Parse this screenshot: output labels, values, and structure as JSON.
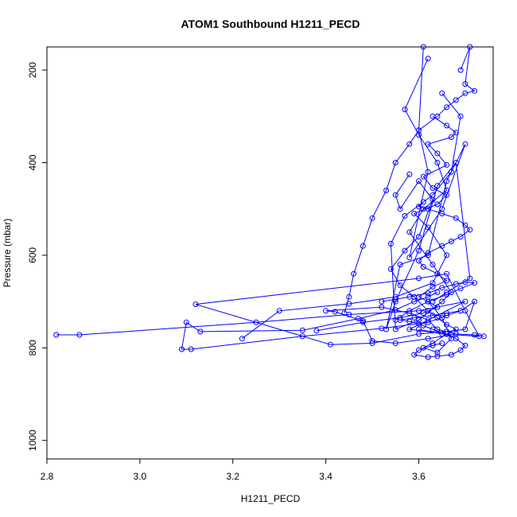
{
  "chart_data": {
    "type": "scatter",
    "title": "ATOM1 Southbound H1211_PECD",
    "xlabel": "H1211_PECD",
    "ylabel": "Pressure (mbar)",
    "xlim": [
      2.8,
      3.76
    ],
    "ylim": [
      1040,
      150
    ],
    "y_reversed": true,
    "xticks": [
      "2.8",
      "3.0",
      "3.2",
      "3.4",
      "3.6"
    ],
    "yticks": [
      "200",
      "400",
      "600",
      "800",
      "1000"
    ],
    "grid": false,
    "legend": "none",
    "colors": {
      "series": "#0000ff",
      "axis": "#000000",
      "background": "#ffffff"
    },
    "series": [
      {
        "marker": "open-circle",
        "connected": true,
        "x": [
          3.64,
          3.62,
          3.59,
          3.55,
          3.47,
          3.35,
          3.13,
          3.1,
          3.09,
          3.11,
          3.35,
          3.52,
          3.62,
          3.66,
          3.69,
          3.72,
          3.7,
          3.66,
          3.6,
          3.5,
          3.41,
          3.12,
          3.6,
          3.66,
          3.7,
          3.73,
          3.65,
          3.6
        ],
        "y": [
          680,
          690,
          700,
          718,
          737,
          762,
          765,
          745,
          803,
          803,
          775,
          758,
          745,
          730,
          720,
          700,
          760,
          765,
          770,
          790,
          793,
          706,
          650,
          640,
          720,
          775,
          770,
          760
        ]
      },
      {
        "marker": "open-circle",
        "connected": true,
        "x": [
          2.82,
          2.87,
          3.25,
          3.45,
          3.6,
          3.7,
          3.58,
          3.67,
          3.62,
          3.55,
          3.5,
          3.48,
          3.42,
          3.4,
          3.52,
          3.58,
          3.62,
          3.64,
          3.68,
          3.72,
          3.74
        ],
        "y": [
          772,
          772,
          745,
          728,
          720,
          700,
          760,
          772,
          780,
          790,
          785,
          742,
          722,
          720,
          712,
          725,
          740,
          760,
          770,
          772,
          775
        ]
      },
      {
        "marker": "open-circle",
        "connected": true,
        "x": [
          3.61,
          3.6,
          3.62,
          3.58,
          3.65,
          3.7,
          3.66,
          3.62,
          3.56,
          3.53,
          3.55,
          3.6,
          3.64,
          3.68,
          3.71,
          3.66,
          3.63
        ],
        "y": [
          150,
          330,
          420,
          605,
          500,
          360,
          440,
          600,
          620,
          760,
          700,
          590,
          450,
          400,
          650,
          680,
          700
        ]
      },
      {
        "marker": "open-circle",
        "connected": true,
        "x": [
          3.62,
          3.57,
          3.6,
          3.64,
          3.66,
          3.61,
          3.58,
          3.63,
          3.67,
          3.65,
          3.6,
          3.55,
          3.54,
          3.57,
          3.63,
          3.67,
          3.69,
          3.65
        ],
        "y": [
          175,
          285,
          340,
          400,
          460,
          500,
          550,
          620,
          680,
          700,
          740,
          760,
          575,
          515,
          470,
          420,
          300,
          250
        ]
      },
      {
        "marker": "open-circle",
        "connected": true,
        "x": [
          3.58,
          3.55,
          3.56,
          3.6,
          3.63,
          3.6,
          3.57,
          3.54,
          3.56,
          3.59,
          3.62,
          3.64,
          3.66,
          3.68,
          3.66,
          3.63,
          3.61,
          3.64,
          3.67,
          3.65,
          3.62
        ],
        "y": [
          425,
          470,
          500,
          440,
          480,
          560,
          590,
          630,
          665,
          690,
          720,
          735,
          750,
          760,
          770,
          790,
          800,
          810,
          780,
          735,
          700
        ]
      },
      {
        "marker": "open-circle",
        "connected": true,
        "x": [
          3.22,
          3.3,
          3.45,
          3.55,
          3.63,
          3.66,
          3.62,
          3.59,
          3.64,
          3.66,
          3.63,
          3.61,
          3.66,
          3.64,
          3.62,
          3.67,
          3.68,
          3.66,
          3.63
        ],
        "y": [
          780,
          720,
          705,
          690,
          660,
          600,
          540,
          510,
          490,
          470,
          455,
          430,
          405,
          380,
          360,
          345,
          335,
          320,
          300
        ]
      },
      {
        "marker": "open-circle",
        "connected": true,
        "x": [
          3.38,
          3.48,
          3.56,
          3.61,
          3.64,
          3.62,
          3.6,
          3.63,
          3.66,
          3.64,
          3.61,
          3.6,
          3.62,
          3.65,
          3.67,
          3.69,
          3.71,
          3.7,
          3.68,
          3.65,
          3.62,
          3.6,
          3.61
        ],
        "y": [
          763,
          745,
          735,
          725,
          712,
          700,
          690,
          668,
          655,
          640,
          625,
          612,
          595,
          580,
          570,
          560,
          545,
          535,
          520,
          510,
          500,
          495,
          485
        ]
      },
      {
        "marker": "open-circle",
        "connected": true,
        "x": [
          3.65,
          3.63,
          3.6,
          3.59,
          3.62,
          3.64,
          3.67,
          3.69,
          3.7,
          3.68,
          3.66,
          3.63,
          3.61,
          3.6,
          3.58,
          3.56,
          3.59,
          3.63,
          3.66,
          3.69
        ],
        "y": [
          790,
          795,
          805,
          815,
          820,
          818,
          815,
          805,
          795,
          780,
          770,
          760,
          752,
          748,
          743,
          740,
          735,
          730,
          725,
          720
        ]
      },
      {
        "marker": "open-circle",
        "connected": true,
        "x": [
          3.69,
          3.71,
          3.7,
          3.72,
          3.7,
          3.68,
          3.66,
          3.64,
          3.6,
          3.58,
          3.55,
          3.53,
          3.5,
          3.48,
          3.46,
          3.45,
          3.44
        ],
        "y": [
          200,
          150,
          230,
          245,
          250,
          265,
          280,
          300,
          330,
          360,
          400,
          460,
          520,
          580,
          640,
          690,
          725
        ]
      },
      {
        "marker": "open-circle",
        "connected": true,
        "x": [
          3.52,
          3.55,
          3.58,
          3.62,
          3.65,
          3.68,
          3.7,
          3.72,
          3.69,
          3.66,
          3.62,
          3.58,
          3.55
        ],
        "y": [
          700,
          695,
          690,
          682,
          670,
          662,
          658,
          660,
          672,
          685,
          700,
          720,
          740
        ]
      }
    ]
  }
}
